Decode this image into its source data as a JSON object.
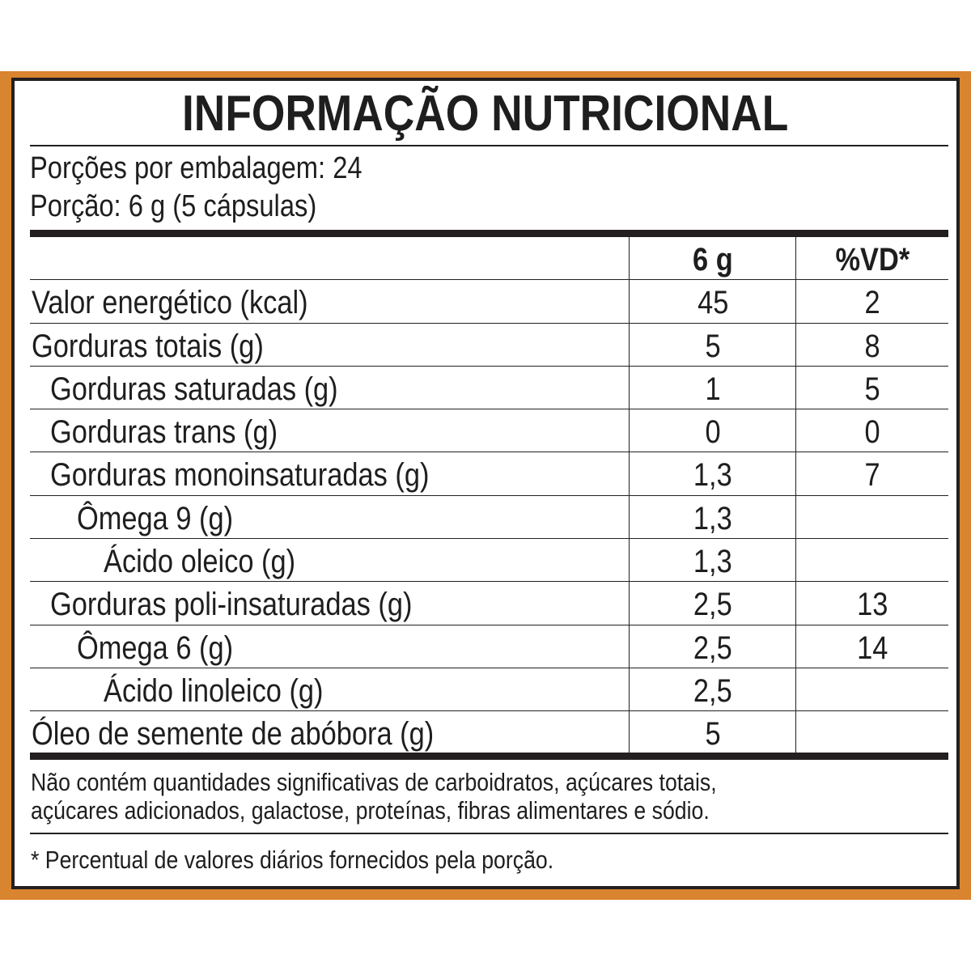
{
  "title": "INFORMAÇÃO NUTRICIONAL",
  "servings_per_package": "Porções por embalagem: 24",
  "serving_size": "Porção: 6 g (5 cápsulas)",
  "columns": [
    "",
    "6 g",
    "%VD*"
  ],
  "rows": [
    {
      "label": "Valor energético (kcal)",
      "level": 0,
      "amount": "45",
      "dv": "2"
    },
    {
      "label": "Gorduras totais (g)",
      "level": 0,
      "amount": "5",
      "dv": "8"
    },
    {
      "label": "Gorduras saturadas (g)",
      "level": 1,
      "amount": "1",
      "dv": "5"
    },
    {
      "label": "Gorduras trans (g)",
      "level": 1,
      "amount": "0",
      "dv": "0"
    },
    {
      "label": "Gorduras monoinsaturadas (g)",
      "level": 1,
      "amount": "1,3",
      "dv": "7"
    },
    {
      "label": "Ômega 9 (g)",
      "level": 2,
      "amount": "1,3",
      "dv": ""
    },
    {
      "label": "Ácido oleico (g)",
      "level": 3,
      "amount": "1,3",
      "dv": ""
    },
    {
      "label": "Gorduras poli-insaturadas (g)",
      "level": 1,
      "amount": "2,5",
      "dv": "13"
    },
    {
      "label": "Ômega 6 (g)",
      "level": 2,
      "amount": "2,5",
      "dv": "14"
    },
    {
      "label": "Ácido linoleico (g)",
      "level": 3,
      "amount": "2,5",
      "dv": ""
    },
    {
      "label": "Óleo de semente de abóbora (g)",
      "level": 0,
      "amount": "5",
      "dv": ""
    }
  ],
  "note_lines": [
    "Não contém quantidades significativas de carboidratos, açúcares totais,",
    "açúcares adicionados, galactose, proteínas, fibras alimentares e sódio."
  ],
  "footnote": "* Percentual de valores diários fornecidos pela porção.",
  "colors": {
    "border": "#d9842f",
    "text": "#231f20"
  }
}
